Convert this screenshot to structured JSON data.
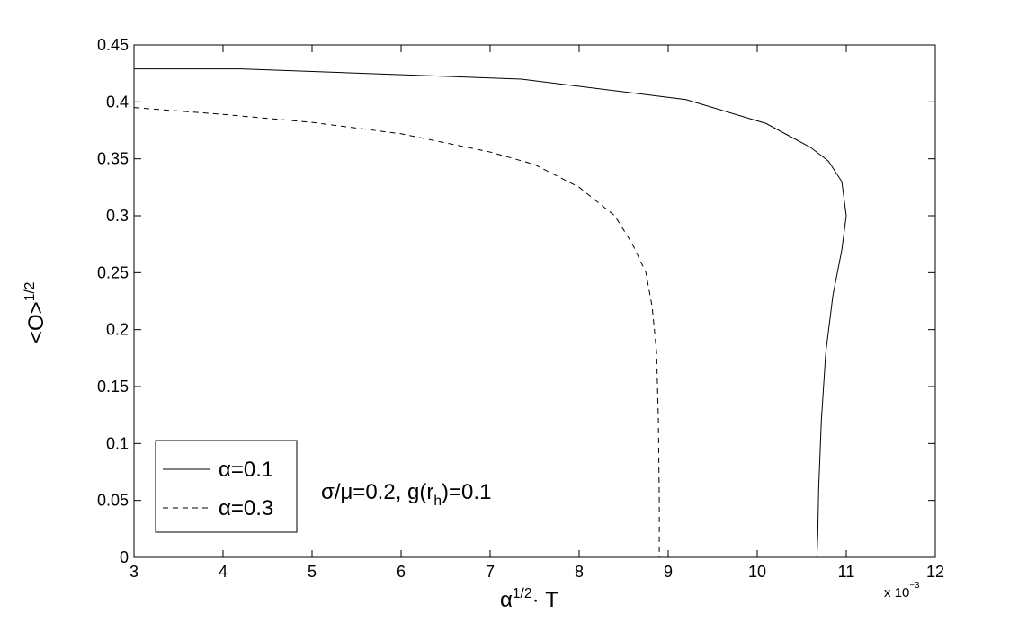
{
  "chart_data": {
    "type": "line",
    "xlabel": [
      "α",
      "1/2",
      "· T"
    ],
    "ylabel": [
      "<O>",
      "1/2"
    ],
    "x_exponent": [
      "x 10",
      "−3"
    ],
    "annotation": [
      "σ/μ=0.2, g(r",
      "h",
      ")=0.1"
    ],
    "xlim": [
      3,
      12
    ],
    "xticks": [
      3,
      4,
      5,
      6,
      7,
      8,
      9,
      10,
      11,
      12
    ],
    "ylim": [
      0,
      0.45
    ],
    "yticks": [
      0,
      0.05,
      0.1,
      0.15,
      0.2,
      0.25,
      0.3,
      0.35,
      0.4,
      0.45
    ],
    "legend": "southwest",
    "series": [
      {
        "name": "α=0.1",
        "color": "#000000",
        "dash": "solid",
        "x": [
          3,
          4.2,
          7.35,
          9.2,
          10.1,
          10.6,
          10.8,
          10.95,
          11.0,
          10.95,
          10.85,
          10.77,
          10.72,
          10.69,
          10.68,
          10.67
        ],
        "values": [
          0.429,
          0.429,
          0.42,
          0.402,
          0.381,
          0.36,
          0.348,
          0.33,
          0.3,
          0.27,
          0.23,
          0.18,
          0.12,
          0.06,
          0.02,
          0
        ]
      },
      {
        "name": "α=0.3",
        "color": "#000000",
        "dash": "dashed",
        "x": [
          3,
          4,
          5,
          6,
          7,
          7.5,
          8,
          8.4,
          8.6,
          8.75,
          8.82,
          8.87,
          8.89,
          8.9,
          8.9
        ],
        "values": [
          0.395,
          0.389,
          0.382,
          0.372,
          0.356,
          0.345,
          0.325,
          0.3,
          0.275,
          0.25,
          0.22,
          0.18,
          0.12,
          0.05,
          0
        ]
      }
    ]
  }
}
